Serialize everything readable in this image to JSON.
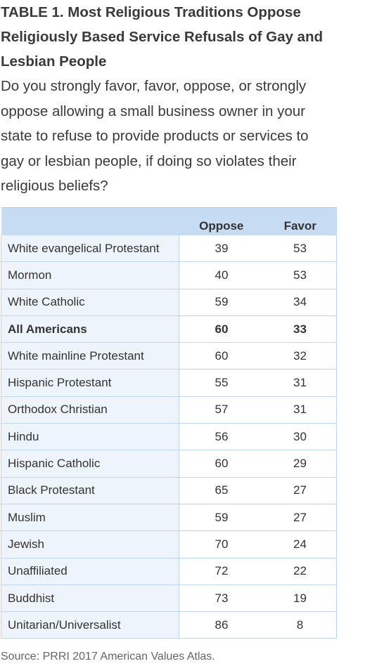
{
  "chart_data": {
    "type": "table",
    "title": "TABLE 1. Most Religious Traditions Oppose Religiously Based Service Refusals of Gay and Lesbian People",
    "subtitle": "Do you strongly favor, favor, oppose, or strongly oppose allowing a small business owner in your state to refuse to provide products or services to gay or lesbian people, if doing so violates their religious beliefs?",
    "columns": [
      "",
      "Oppose",
      "Favor"
    ],
    "rows": [
      {
        "label": "White evangelical Protestant",
        "oppose": 39,
        "favor": 53
      },
      {
        "label": "Mormon",
        "oppose": 40,
        "favor": 53
      },
      {
        "label": "White Catholic",
        "oppose": 59,
        "favor": 34
      },
      {
        "label": "All Americans",
        "oppose": 60,
        "favor": 33,
        "highlight": true
      },
      {
        "label": "White mainline Protestant",
        "oppose": 60,
        "favor": 32
      },
      {
        "label": "Hispanic Protestant",
        "oppose": 55,
        "favor": 31
      },
      {
        "label": "Orthodox Christian",
        "oppose": 57,
        "favor": 31
      },
      {
        "label": "Hindu",
        "oppose": 56,
        "favor": 30
      },
      {
        "label": "Hispanic Catholic",
        "oppose": 60,
        "favor": 29
      },
      {
        "label": "Black Protestant",
        "oppose": 65,
        "favor": 27
      },
      {
        "label": "Muslim",
        "oppose": 59,
        "favor": 27
      },
      {
        "label": "Jewish",
        "oppose": 70,
        "favor": 24
      },
      {
        "label": "Unaffiliated",
        "oppose": 72,
        "favor": 22
      },
      {
        "label": "Buddhist",
        "oppose": 73,
        "favor": 19
      },
      {
        "label": "Unitarian/Universalist",
        "oppose": 86,
        "favor": 8
      }
    ],
    "source": "Source: PRRI 2017 American Values Atlas.",
    "colors": {
      "header_bg": "#c5dcf2",
      "label_col_bg": "#eef4fb",
      "grid": "#bfd6ee"
    }
  }
}
